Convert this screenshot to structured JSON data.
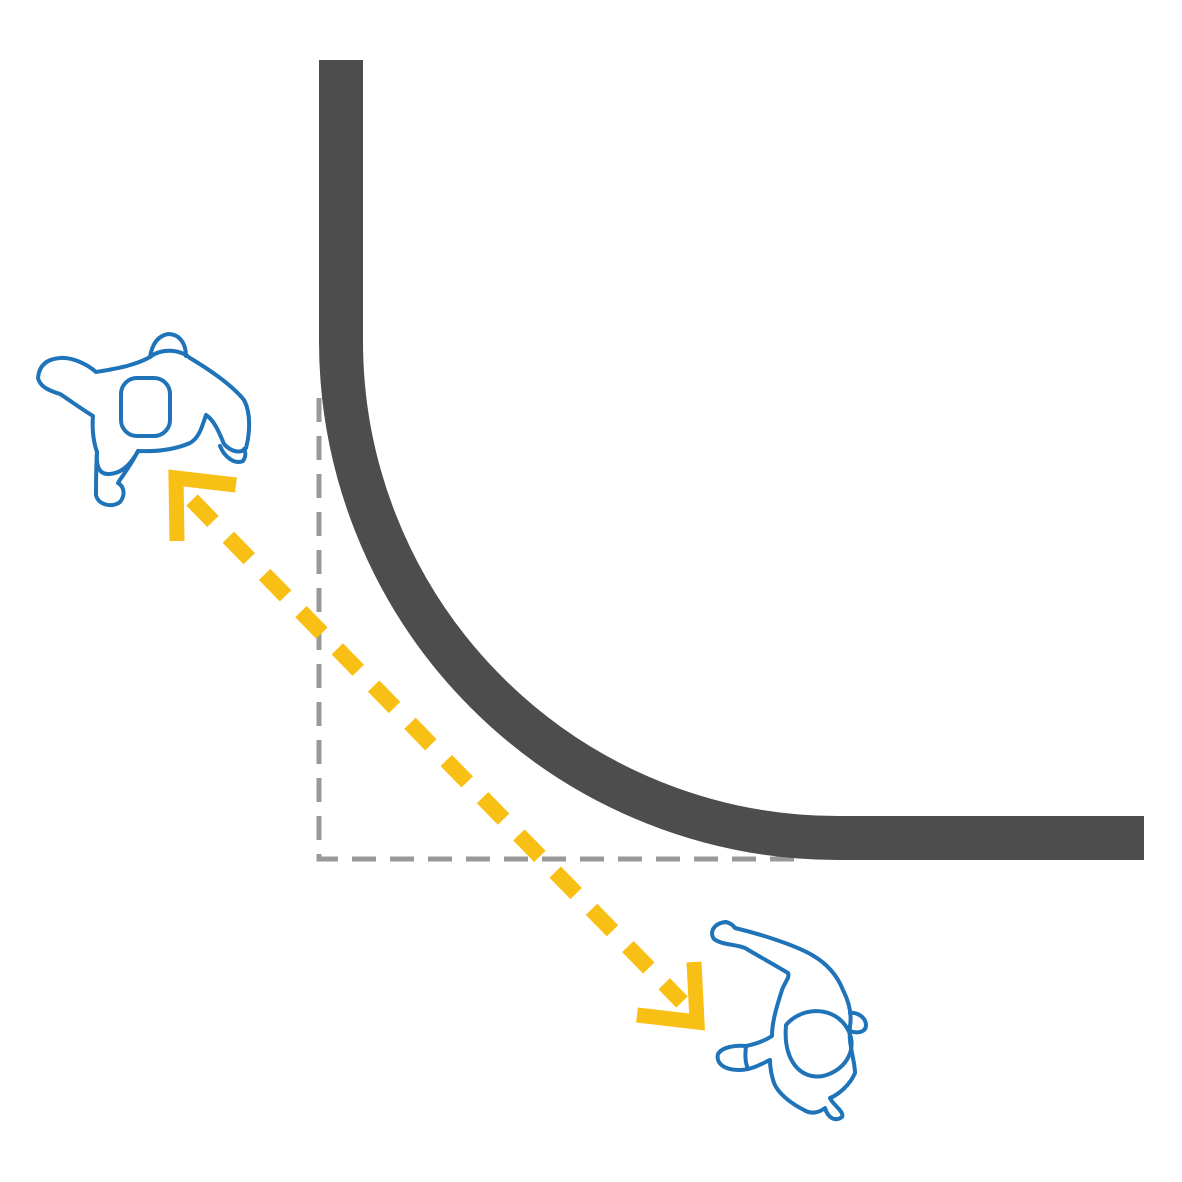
{
  "colors": {
    "background": "#ffffff",
    "curved_wall": "#4d4d4d",
    "square_corner_guide": "#999999",
    "sightline_arrow": "#f8bf14",
    "person_outline": "#1f73b8"
  },
  "elements": {
    "curved_wall": {
      "shape": "rounded-corner"
    },
    "square_corner_guide": {
      "style": "dashed"
    },
    "sightline": {
      "style": "dashed",
      "heads": "both-ends"
    },
    "people": [
      {
        "icon": "person-top-view-icon",
        "facing": "down-right"
      },
      {
        "icon": "person-top-view-icon",
        "facing": "up-left"
      }
    ]
  }
}
